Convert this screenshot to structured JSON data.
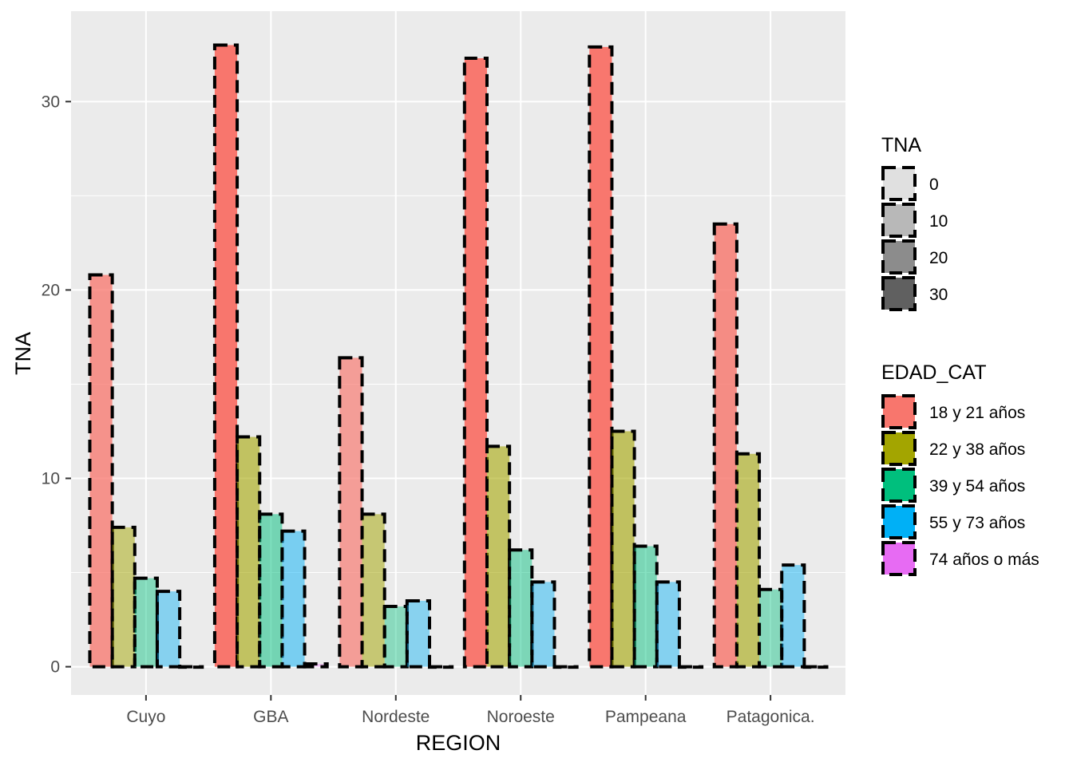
{
  "chart_data": {
    "type": "bar",
    "xlabel": "REGION",
    "ylabel": "TNA",
    "ylim": [
      -1.5,
      34.8
    ],
    "yticks": [
      0,
      10,
      20,
      30
    ],
    "grid": true,
    "categories": [
      "Cuyo",
      "GBA",
      "Nordeste",
      "Noroeste",
      "Pampeana",
      "Patagonica."
    ],
    "series": [
      {
        "name": "18 y 21 años",
        "color": "#F8766D",
        "values": [
          20.8,
          33.0,
          16.4,
          32.3,
          32.9,
          23.5
        ]
      },
      {
        "name": "22 y 38 años",
        "color": "#A3A500",
        "values": [
          7.4,
          12.2,
          8.1,
          11.7,
          12.5,
          11.3
        ]
      },
      {
        "name": "39 y 54 años",
        "color": "#00BF7D",
        "values": [
          4.7,
          8.1,
          3.2,
          6.2,
          6.4,
          4.1
        ]
      },
      {
        "name": "55 y 73 años",
        "color": "#00B0F6",
        "values": [
          4.0,
          7.2,
          3.5,
          4.5,
          4.5,
          5.4
        ]
      },
      {
        "name": "74 años o más",
        "color": "#E76BF3",
        "values": [
          0,
          0.15,
          0,
          0,
          0,
          0
        ]
      }
    ],
    "legend_position": "right",
    "legend_alpha": {
      "title": "TNA",
      "breaks": [
        "0",
        "10",
        "20",
        "30"
      ],
      "fills": [
        "#e0e0e0",
        "#b8b8b8",
        "#8c8c8c",
        "#606060"
      ]
    },
    "legend_fill": {
      "title": "EDAD_CAT"
    }
  }
}
